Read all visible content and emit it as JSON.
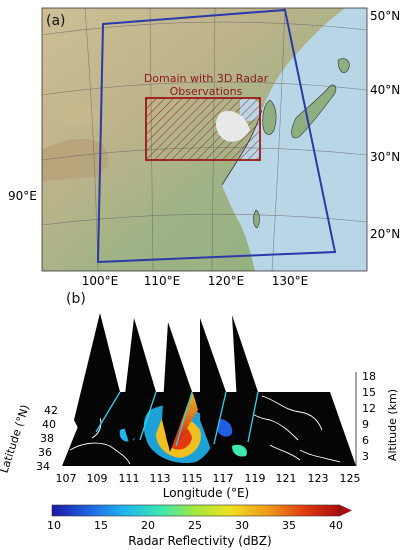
{
  "panel_a": {
    "label": "(a)",
    "domain_label_line1": "Domain with 3D Radar",
    "domain_label_line2": "Observations",
    "lat_labels": [
      "50°N",
      "40°N",
      "30°N",
      "20°N"
    ],
    "lon_labels": [
      "100°E",
      "110°E",
      "120°E",
      "130°E"
    ],
    "left_lon_label": "90°E",
    "colors": {
      "outer_domain": "#2b3aa8",
      "radar_domain": "#9b1b1b",
      "ocean": "#b9d6e6"
    }
  },
  "panel_b": {
    "label": "(b)",
    "latitude_label": "Latitude (°N)",
    "lat_ticks": [
      "42",
      "40",
      "38",
      "36",
      "34"
    ],
    "longitude_label": "Longitude (°E)",
    "lon_ticks": [
      "107",
      "109",
      "111",
      "113",
      "115",
      "117",
      "119",
      "121",
      "123",
      "125"
    ],
    "altitude_label": "Altitude (km)",
    "alt_ticks": [
      "18",
      "15",
      "12",
      "9",
      "6",
      "3"
    ]
  },
  "colorbar": {
    "label": "Radar Reflectivity (dBZ)",
    "ticks": [
      "10",
      "15",
      "20",
      "25",
      "30",
      "35",
      "40"
    ],
    "colors": [
      "#1a1aa0",
      "#1f5fe0",
      "#20b4f0",
      "#3ce8b0",
      "#a6e83a",
      "#f0e020",
      "#f09a18",
      "#e03a10",
      "#a80d0d"
    ]
  }
}
